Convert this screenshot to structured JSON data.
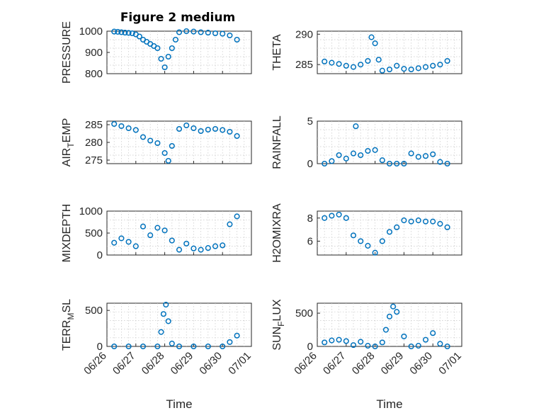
{
  "figure": {
    "title": "Figure 2 medium"
  },
  "colors": {
    "marker": "#0072BD",
    "axis": "#262626",
    "grid": "#c8c8c8",
    "background": "#ffffff"
  },
  "chart_data": [
    {
      "type": "scatter",
      "ylabel": "PRESSURE",
      "xlabel": "",
      "xlim": [
        "06/26",
        "07/01"
      ],
      "ylim": [
        800,
        1000
      ],
      "yticks": [
        800,
        900,
        1000
      ],
      "xticks": [],
      "grid": true,
      "marker": "o",
      "x": [
        "06/26 06:00",
        "06/26 09:00",
        "06/26 12:00",
        "06/26 15:00",
        "06/26 18:00",
        "06/26 21:00",
        "06/27 00:00",
        "06/27 03:00",
        "06/27 06:00",
        "06/27 09:00",
        "06/27 12:00",
        "06/27 15:00",
        "06/27 18:00",
        "06/27 21:00",
        "06/28 00:00",
        "06/28 03:00",
        "06/28 06:00",
        "06/28 09:00",
        "06/28 12:00",
        "06/28 18:00",
        "06/29 00:00",
        "06/29 06:00",
        "06/29 12:00",
        "06/29 18:00",
        "06/30 00:00",
        "06/30 06:00",
        "06/30 12:00"
      ],
      "values": [
        998,
        997,
        995,
        993,
        992,
        990,
        985,
        975,
        960,
        950,
        940,
        930,
        920,
        870,
        830,
        880,
        920,
        960,
        995,
        1000,
        998,
        995,
        993,
        990,
        988,
        980,
        960
      ]
    },
    {
      "type": "scatter",
      "ylabel": "THETA",
      "xlabel": "",
      "xlim": [
        "06/26",
        "07/01"
      ],
      "ylim": [
        283.5,
        290.5
      ],
      "yticks": [
        285,
        290
      ],
      "xticks": [],
      "grid": true,
      "marker": "o",
      "x": [
        "06/26 06:00",
        "06/26 12:00",
        "06/26 18:00",
        "06/27 00:00",
        "06/27 06:00",
        "06/27 12:00",
        "06/27 18:00",
        "06/27 21:00",
        "06/28 00:00",
        "06/28 03:00",
        "06/28 06:00",
        "06/28 12:00",
        "06/28 18:00",
        "06/29 00:00",
        "06/29 06:00",
        "06/29 12:00",
        "06/29 18:00",
        "06/30 00:00",
        "06/30 06:00",
        "06/30 12:00"
      ],
      "values": [
        285.5,
        285.3,
        285.1,
        284.8,
        284.6,
        285.0,
        285.6,
        289.5,
        288.5,
        285.8,
        284.0,
        284.2,
        284.8,
        284.3,
        284.2,
        284.4,
        284.6,
        284.8,
        285.0,
        285.6
      ]
    },
    {
      "type": "scatter",
      "ylabel": "AIR_TEMP",
      "xlabel": "",
      "xlim": [
        "06/26",
        "07/01"
      ],
      "ylim": [
        274,
        286
      ],
      "yticks": [
        275,
        280,
        285
      ],
      "xticks": [],
      "grid": true,
      "marker": "o",
      "x": [
        "06/26 06:00",
        "06/26 12:00",
        "06/26 18:00",
        "06/27 00:00",
        "06/27 06:00",
        "06/27 12:00",
        "06/27 18:00",
        "06/28 00:00",
        "06/28 03:00",
        "06/28 06:00",
        "06/28 12:00",
        "06/28 18:00",
        "06/29 00:00",
        "06/29 06:00",
        "06/29 12:00",
        "06/29 18:00",
        "06/30 00:00",
        "06/30 06:00",
        "06/30 12:00"
      ],
      "values": [
        285.2,
        284.6,
        284.0,
        283.5,
        281.5,
        280.5,
        279.8,
        277.0,
        274.8,
        279.0,
        283.8,
        284.8,
        284.0,
        283.2,
        283.6,
        283.8,
        283.5,
        283.0,
        281.8
      ]
    },
    {
      "type": "scatter",
      "ylabel": "RAINFALL",
      "xlabel": "",
      "xlim": [
        "06/26",
        "07/01"
      ],
      "ylim": [
        0,
        5
      ],
      "yticks": [
        0,
        5
      ],
      "xticks": [],
      "grid": true,
      "marker": "o",
      "x": [
        "06/26 06:00",
        "06/26 12:00",
        "06/26 18:00",
        "06/27 00:00",
        "06/27 06:00",
        "06/27 08:00",
        "06/27 12:00",
        "06/27 18:00",
        "06/28 00:00",
        "06/28 06:00",
        "06/28 12:00",
        "06/28 18:00",
        "06/29 00:00",
        "06/29 06:00",
        "06/29 12:00",
        "06/29 18:00",
        "06/30 00:00",
        "06/30 06:00",
        "06/30 12:00"
      ],
      "values": [
        0,
        0.3,
        1.0,
        0.6,
        1.2,
        4.4,
        1.0,
        1.5,
        1.6,
        0.4,
        0,
        0,
        0,
        1.2,
        0.8,
        0.9,
        1.1,
        0.2,
        0
      ]
    },
    {
      "type": "scatter",
      "ylabel": "MIXDEPTH",
      "xlabel": "",
      "xlim": [
        "06/26",
        "07/01"
      ],
      "ylim": [
        0,
        1000
      ],
      "yticks": [
        0,
        500,
        1000
      ],
      "xticks": [],
      "grid": true,
      "marker": "o",
      "x": [
        "06/26 06:00",
        "06/26 12:00",
        "06/26 18:00",
        "06/27 00:00",
        "06/27 06:00",
        "06/27 12:00",
        "06/27 18:00",
        "06/28 00:00",
        "06/28 06:00",
        "06/28 12:00",
        "06/28 18:00",
        "06/29 00:00",
        "06/29 06:00",
        "06/29 12:00",
        "06/29 18:00",
        "06/30 00:00",
        "06/30 06:00",
        "06/30 12:00"
      ],
      "values": [
        280,
        380,
        300,
        200,
        650,
        450,
        620,
        560,
        330,
        120,
        260,
        150,
        120,
        160,
        200,
        220,
        700,
        880
      ]
    },
    {
      "type": "scatter",
      "ylabel": "H2OMIXRA",
      "xlabel": "",
      "xlim": [
        "06/26",
        "07/01"
      ],
      "ylim": [
        4.8,
        8.6
      ],
      "yticks": [
        6,
        8
      ],
      "xticks": [],
      "grid": true,
      "marker": "o",
      "x": [
        "06/26 06:00",
        "06/26 12:00",
        "06/26 18:00",
        "06/27 00:00",
        "06/27 06:00",
        "06/27 12:00",
        "06/27 18:00",
        "06/28 00:00",
        "06/28 06:00",
        "06/28 12:00",
        "06/28 18:00",
        "06/29 00:00",
        "06/29 06:00",
        "06/29 12:00",
        "06/29 18:00",
        "06/30 00:00",
        "06/30 06:00",
        "06/30 12:00"
      ],
      "values": [
        8.0,
        8.2,
        8.3,
        8.0,
        6.5,
        6.0,
        5.6,
        5.0,
        6.0,
        6.8,
        7.2,
        7.8,
        7.7,
        7.8,
        7.7,
        7.7,
        7.5,
        7.2
      ]
    },
    {
      "type": "scatter",
      "ylabel": "TERR_MSL",
      "xlabel": "Time",
      "xlim": [
        "06/26",
        "07/01"
      ],
      "ylim": [
        0,
        600
      ],
      "yticks": [
        0,
        500
      ],
      "xticks": [
        "06/26",
        "06/27",
        "06/28",
        "06/29",
        "06/30",
        "07/01"
      ],
      "grid": true,
      "marker": "o",
      "x": [
        "06/26 06:00",
        "06/26 18:00",
        "06/27 06:00",
        "06/27 18:00",
        "06/27 21:00",
        "06/27 23:00",
        "06/28 01:00",
        "06/28 03:00",
        "06/28 06:00",
        "06/28 12:00",
        "06/29 00:00",
        "06/29 12:00",
        "06/30 00:00",
        "06/30 06:00",
        "06/30 12:00"
      ],
      "values": [
        0,
        0,
        0,
        0,
        200,
        450,
        580,
        350,
        40,
        0,
        0,
        0,
        0,
        60,
        150
      ]
    },
    {
      "type": "scatter",
      "ylabel": "SUN_FLUX",
      "xlabel": "Time",
      "xlim": [
        "06/26",
        "07/01"
      ],
      "ylim": [
        0,
        650
      ],
      "yticks": [
        0,
        500
      ],
      "xticks": [
        "06/26",
        "06/27",
        "06/28",
        "06/29",
        "06/30",
        "07/01"
      ],
      "grid": true,
      "marker": "o",
      "x": [
        "06/26 06:00",
        "06/26 12:00",
        "06/26 18:00",
        "06/27 00:00",
        "06/27 06:00",
        "06/27 12:00",
        "06/27 18:00",
        "06/28 00:00",
        "06/28 06:00",
        "06/28 09:00",
        "06/28 12:00",
        "06/28 15:00",
        "06/28 18:00",
        "06/29 00:00",
        "06/29 06:00",
        "06/29 12:00",
        "06/29 18:00",
        "06/30 00:00",
        "06/30 06:00",
        "06/30 12:00"
      ],
      "values": [
        60,
        90,
        100,
        80,
        20,
        70,
        10,
        0,
        60,
        250,
        450,
        600,
        520,
        150,
        0,
        10,
        100,
        200,
        40,
        0
      ]
    }
  ]
}
